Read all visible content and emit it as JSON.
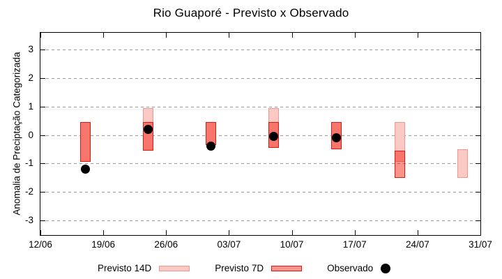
{
  "title": "Rio Guaporé - Previsto x Observado",
  "y_axis": {
    "label": "Anomalia de Preciptação Categorizada",
    "ticks": [
      "3",
      "2",
      "1",
      "0",
      "-1",
      "-2",
      "-3"
    ],
    "tick_values": [
      3,
      2,
      1,
      0,
      -1,
      -2,
      -3
    ]
  },
  "x_axis": {
    "ticks": [
      "12/06",
      "19/06",
      "26/06",
      "03/07",
      "10/07",
      "17/07",
      "24/07",
      "31/07"
    ]
  },
  "legend": [
    {
      "label": "Previsto 14D",
      "type": "bar14"
    },
    {
      "label": "Previsto 7D",
      "type": "bar7"
    },
    {
      "label": "Observado",
      "type": "dot"
    }
  ],
  "colors": {
    "forecast_14d_fill": "#fbc9c3",
    "forecast_14d_border": "#f0968e",
    "forecast_7d_fill": "rgba(244,15,0,0.45)",
    "forecast_7d_border": "#e3170d",
    "overlap_fill": "#f8756b",
    "observed": "#000000",
    "gridline": "#9a9a9a"
  },
  "chart_data": {
    "type": "bar",
    "subtype": "weekly range bars + observed scatter dots",
    "title": "Rio Guaporé - Previsto x Observado",
    "xlabel": "",
    "ylabel": "Anomalia de Preciptação Categorizada",
    "ylim": [
      -3.5,
      3.5
    ],
    "x_start_date": "12/06",
    "x_end_date": "31/07",
    "x_ticks": [
      "12/06",
      "19/06",
      "26/06",
      "03/07",
      "10/07",
      "17/07",
      "24/07",
      "31/07"
    ],
    "y_ticks": [
      3,
      2,
      1,
      0,
      -1,
      -2,
      -3
    ],
    "grid": "horizontal dashed",
    "legend_position": "bottom",
    "x": [
      "17/06",
      "24/06",
      "01/07",
      "08/07",
      "15/07",
      "22/07",
      "29/07"
    ],
    "series": [
      {
        "name": "Previsto 14D",
        "kind": "range-bar",
        "ranges": [
          [
            0.45,
            -0.95
          ],
          [
            0.95,
            -0.55
          ],
          [
            0.45,
            -0.35
          ],
          [
            0.95,
            -0.45
          ],
          [
            0.45,
            -0.5
          ],
          [
            0.45,
            -0.95
          ],
          [
            -0.5,
            -1.5
          ]
        ]
      },
      {
        "name": "Previsto 7D",
        "kind": "range-bar",
        "ranges": [
          [
            0.45,
            -0.95
          ],
          [
            0.45,
            -0.55
          ],
          [
            0.45,
            -0.35
          ],
          [
            0.45,
            -0.45
          ],
          [
            0.45,
            -0.5
          ],
          [
            -0.55,
            -1.5
          ],
          null
        ]
      },
      {
        "name": "Observado",
        "kind": "scatter",
        "values": [
          -1.2,
          0.2,
          -0.4,
          -0.05,
          -0.1,
          null,
          null
        ]
      }
    ]
  }
}
